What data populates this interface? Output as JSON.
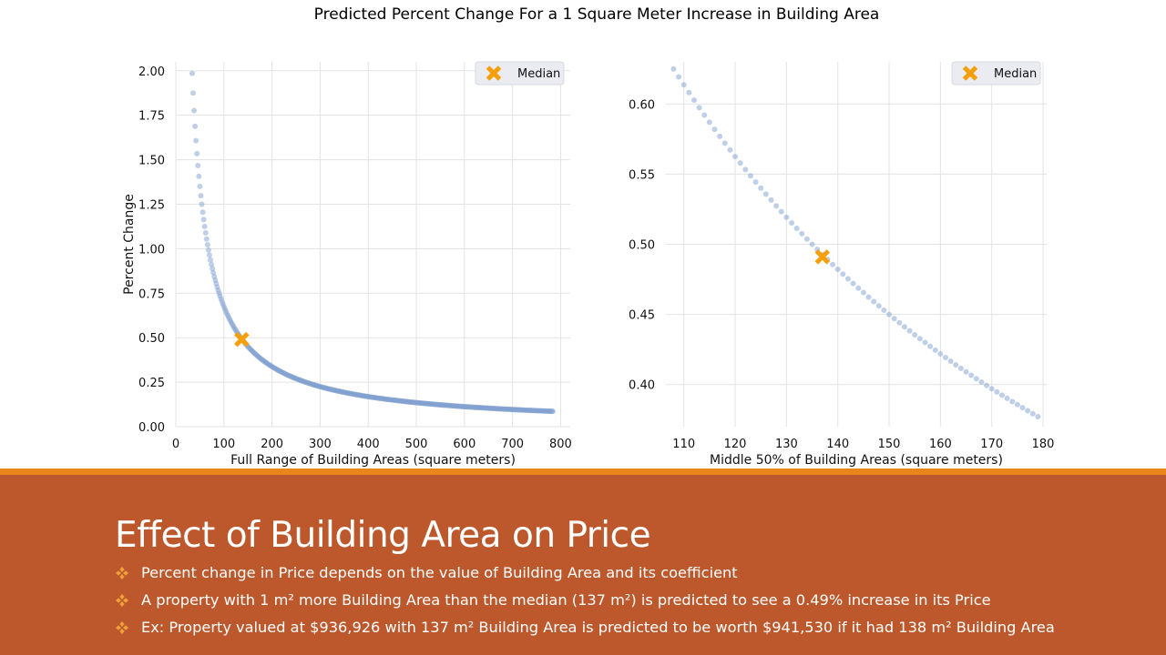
{
  "suptitle": "Predicted Percent Change For a 1 Square Meter Increase in Building Area",
  "chart_data": [
    {
      "type": "scatter",
      "xlabel": "Full Range of Building Areas (square meters)",
      "ylabel": "Percent Change",
      "xlim": [
        0,
        820
      ],
      "ylim": [
        0,
        2.05
      ],
      "xticks": [
        "0",
        "100",
        "200",
        "300",
        "400",
        "500",
        "600",
        "700",
        "800"
      ],
      "yticks": [
        "0.00",
        "0.25",
        "0.50",
        "0.75",
        "1.00",
        "1.25",
        "1.50",
        "1.75",
        "2.00"
      ],
      "grid": true,
      "legend": {
        "position": "top-right",
        "label": "Median"
      },
      "series_curve": {
        "k": 67.5,
        "x_start": 34,
        "x_end": 785,
        "x_step": 2
      },
      "sample_points": [
        {
          "x": 34,
          "y": 1.99
        },
        {
          "x": 50,
          "y": 1.35
        },
        {
          "x": 100,
          "y": 0.68
        },
        {
          "x": 200,
          "y": 0.34
        },
        {
          "x": 400,
          "y": 0.17
        },
        {
          "x": 785,
          "y": 0.086
        }
      ],
      "median": {
        "x": 137,
        "y": 0.49
      }
    },
    {
      "type": "scatter",
      "xlabel": "Middle 50% of Building Areas (square meters)",
      "ylabel": "",
      "xlim": [
        106.5,
        180.7
      ],
      "ylim": [
        0.37,
        0.63
      ],
      "xticks": [
        "110",
        "120",
        "130",
        "140",
        "150",
        "160",
        "170",
        "180"
      ],
      "yticks": [
        "0.40",
        "0.45",
        "0.50",
        "0.55",
        "0.60"
      ],
      "grid": true,
      "legend": {
        "position": "top-right",
        "label": "Median"
      },
      "series_curve": {
        "k": 67.5,
        "x_start": 108,
        "x_end": 179,
        "x_step": 1
      },
      "sample_points": [
        {
          "x": 108,
          "y": 0.622
        },
        {
          "x": 120,
          "y": 0.56
        },
        {
          "x": 137,
          "y": 0.49
        },
        {
          "x": 160,
          "y": 0.422
        },
        {
          "x": 179,
          "y": 0.376
        }
      ],
      "median": {
        "x": 137,
        "y": 0.491
      }
    }
  ],
  "colors": {
    "points": "#7f9fcf",
    "median_marker": "#f5a00a",
    "grid": "#e3e3e3",
    "banner": "#bd582c",
    "rule": "#e8851c",
    "bullet_icon": "#f0a23a"
  },
  "slide": {
    "title": "Effect of Building Area on Price",
    "bullet_icon": "four-diamond-bullet-icon",
    "bullets": [
      "Percent change in Price depends on the value of Building Area and its coefficient",
      "A property with 1 m² more Building Area than the median (137 m²) is predicted to see a 0.49% increase in its Price",
      "Ex: Property valued at $936,926 with 137 m² Building Area is predicted to be worth $941,530 if it had 138 m² Building Area"
    ]
  }
}
